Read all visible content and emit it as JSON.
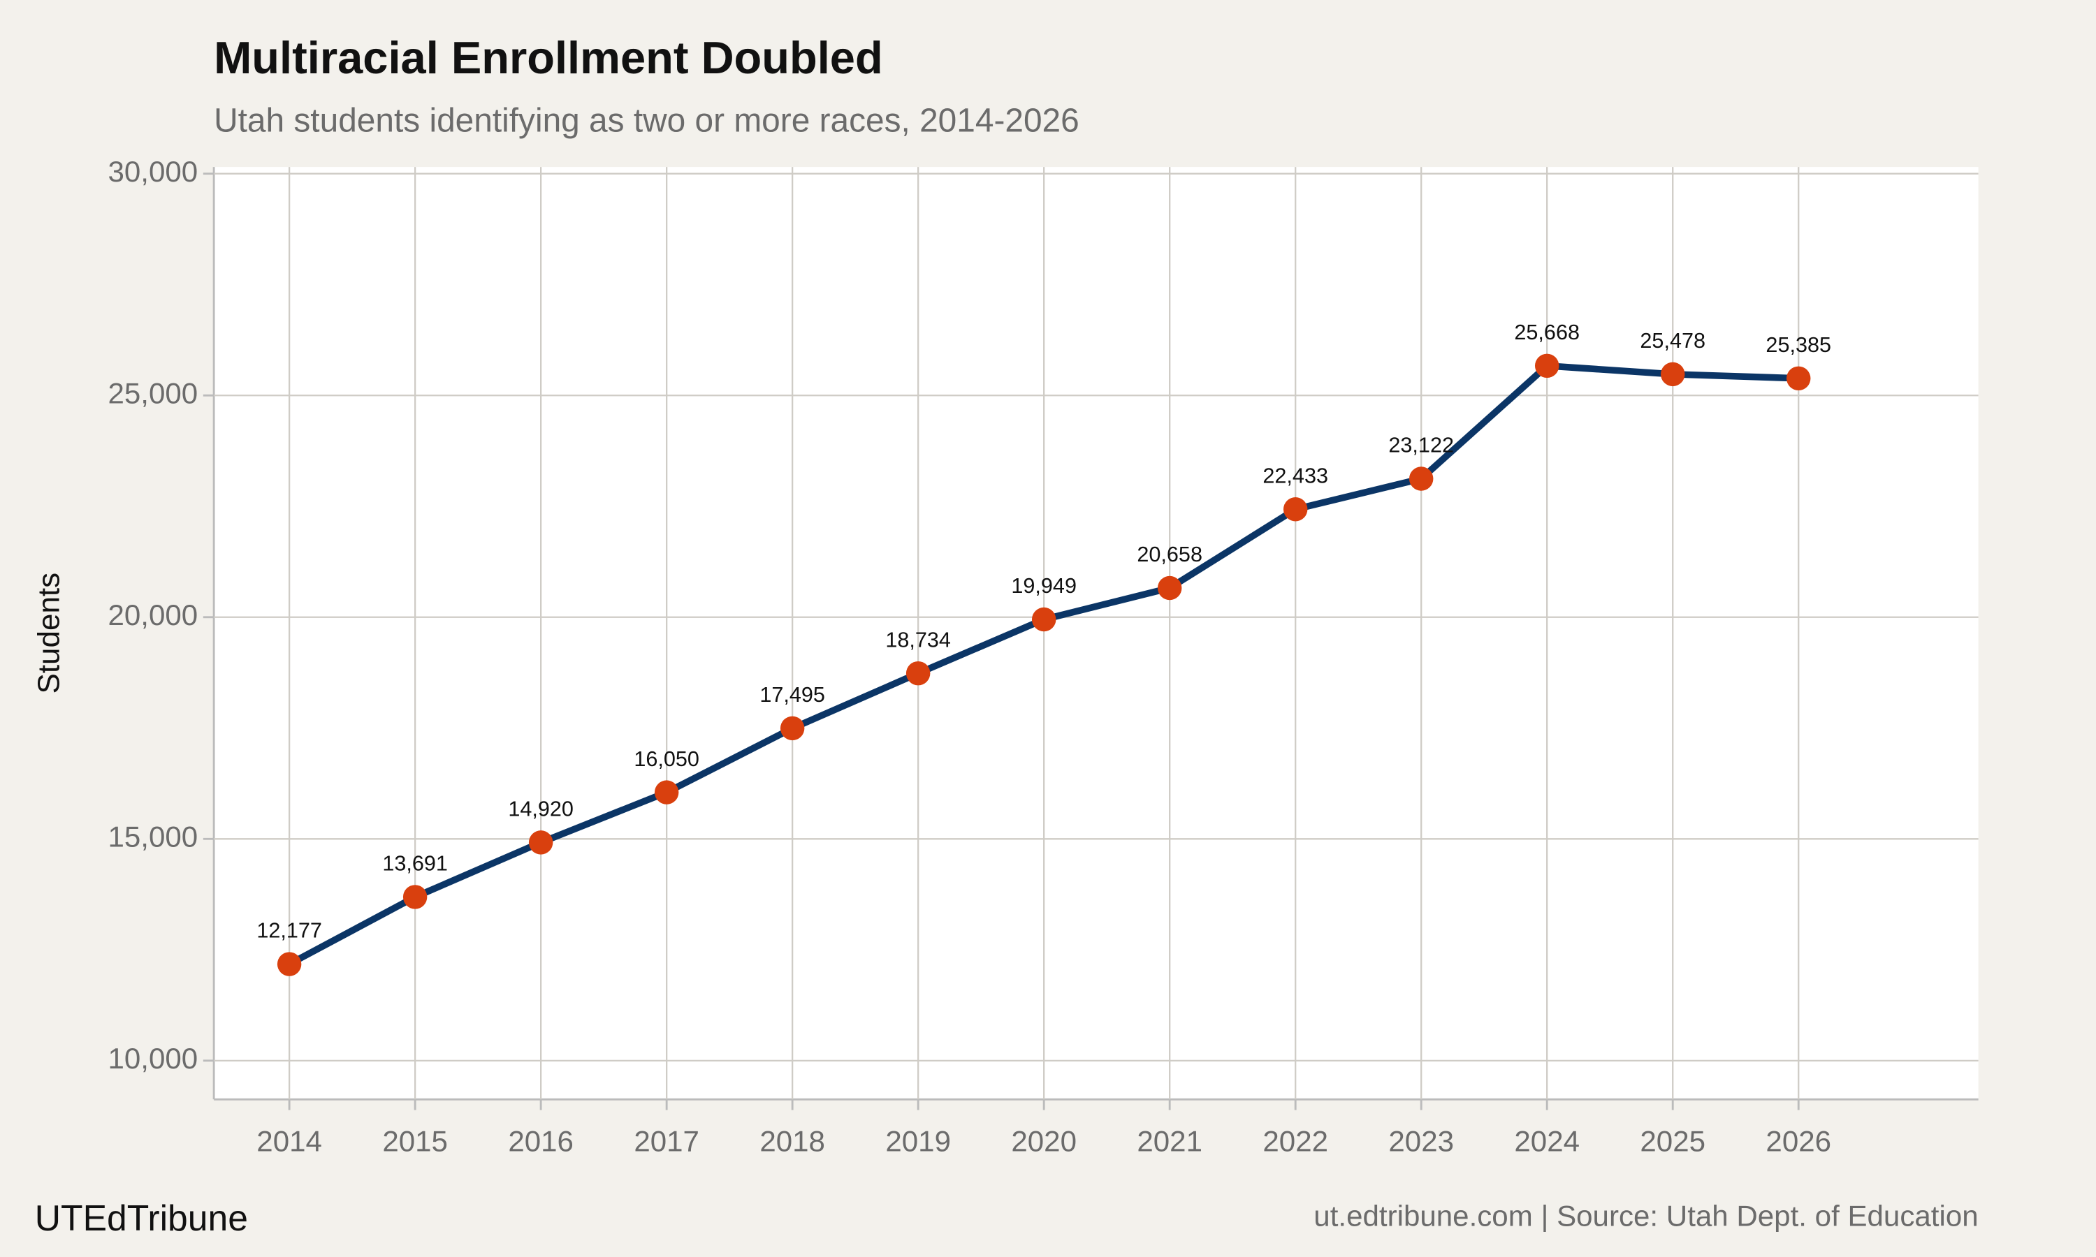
{
  "chart_data": {
    "type": "line",
    "title": "Multiracial Enrollment Doubled",
    "subtitle": "Utah students identifying as two or more races, 2014-2026",
    "y_label": "Students",
    "brand": "UTEdTribune",
    "source": "ut.edtribune.com | Source: Utah Dept. of Education",
    "x": [
      2014,
      2015,
      2016,
      2017,
      2018,
      2019,
      2020,
      2021,
      2022,
      2023,
      2024,
      2025,
      2026
    ],
    "series": [
      {
        "name": "Students",
        "line_color": "#0b3566",
        "color": "#d9400e",
        "values": [
          12177,
          13691,
          14920,
          16050,
          17495,
          18734,
          19949,
          20658,
          22433,
          23122,
          25668,
          25478,
          25385
        ],
        "value_labels": [
          "12,177",
          "13,691",
          "14,920",
          "16,050",
          "17,495",
          "18,734",
          "19,949",
          "20,658",
          "22,433",
          "23,122",
          "25,668",
          "25,478",
          "25,385"
        ]
      }
    ],
    "xlim": [
      2013.4,
      2027.43
    ],
    "xticks": [
      2014,
      2015,
      2016,
      2017,
      2018,
      2019,
      2020,
      2021,
      2022,
      2023,
      2024,
      2025,
      2026
    ],
    "ylim": [
      9127,
      30151
    ],
    "yticks": [
      {
        "value": 10000,
        "label": "10,000"
      },
      {
        "value": 15000,
        "label": "15,000"
      },
      {
        "value": 20000,
        "label": "20,000"
      },
      {
        "value": 25000,
        "label": "25,000"
      },
      {
        "value": 30000,
        "label": "30,000"
      }
    ],
    "grid": true
  }
}
